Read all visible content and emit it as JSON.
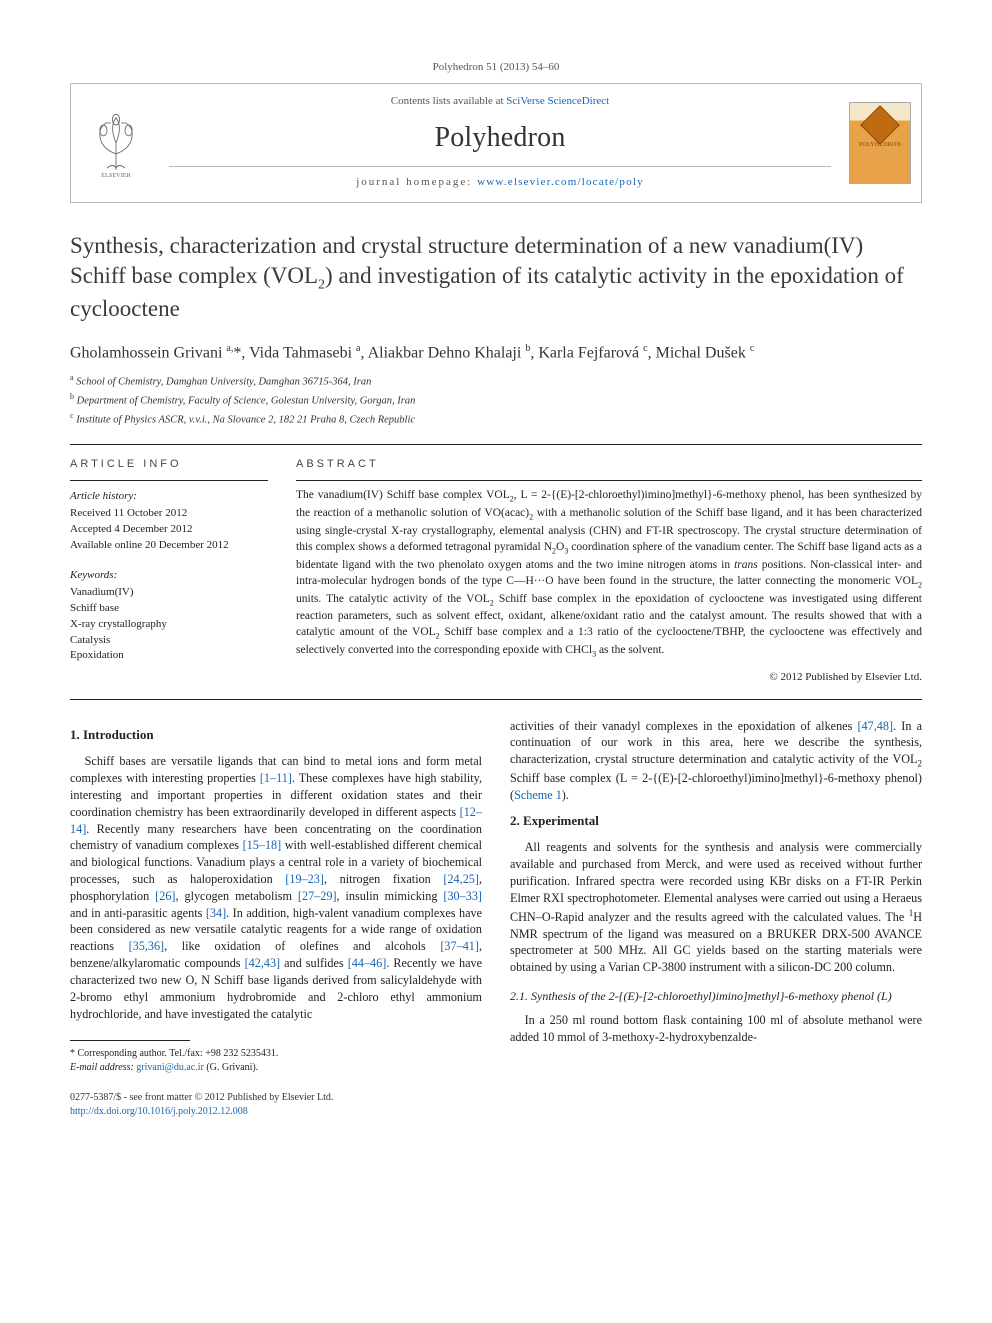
{
  "citation": "Polyhedron 51 (2013) 54–60",
  "header": {
    "contents_prefix": "Contents lists available at ",
    "contents_link": "SciVerse ScienceDirect",
    "journal": "Polyhedron",
    "homepage_label": "journal homepage: ",
    "homepage_url": "www.elsevier.com/locate/poly",
    "cover_label": "POLYHEDRON"
  },
  "title_html": "Synthesis, characterization and crystal structure determination of a new vanadium(IV) Schiff base complex (VOL<sub>2</sub>) and investigation of its catalytic activity in the epoxidation of cyclooctene",
  "authors_html": "Gholamhossein Grivani <sup>a,</sup><span class='corr'>*</span>, Vida Tahmasebi <sup>a</sup>, Aliakbar Dehno Khalaji <sup>b</sup>, Karla Fejfarová <sup>c</sup>, Michal Dušek <sup>c</sup>",
  "affiliations": {
    "a": "School of Chemistry, Damghan University, Damghan 36715-364, Iran",
    "b": "Department of Chemistry, Faculty of Science, Golestan University, Gorgan, Iran",
    "c": "Institute of Physics ASCR, v.v.i., Na Slovance 2, 182 21 Praha 8, Czech Republic"
  },
  "info": {
    "head": "ARTICLE INFO",
    "history_head": "Article history:",
    "received": "Received 11 October 2012",
    "accepted": "Accepted 4 December 2012",
    "online": "Available online 20 December 2012",
    "keywords_head": "Keywords:",
    "keywords": [
      "Vanadium(IV)",
      "Schiff base",
      "X-ray crystallography",
      "Catalysis",
      "Epoxidation"
    ]
  },
  "abstract": {
    "head": "ABSTRACT",
    "text_html": "The vanadium(IV) Schiff base complex VOL<sub>2</sub>, L = 2-{(E)-[2-chloroethyl)imino]methyl}-6-methoxy phenol, has been synthesized by the reaction of a methanolic solution of VO(acac)<sub>2</sub> with a methanolic solution of the Schiff base ligand, and it has been characterized using single-crystal X-ray crystallography, elemental analysis (CHN) and FT-IR spectroscopy. The crystal structure determination of this complex shows a deformed tetragonal pyramidal N<sub>2</sub>O<sub>3</sub> coordination sphere of the vanadium center. The Schiff base ligand acts as a bidentate ligand with the two phenolato oxygen atoms and the two imine nitrogen atoms in <i>trans</i> positions. Non-classical inter- and intra-molecular hydrogen bonds of the type C—H···O have been found in the structure, the latter connecting the monomeric VOL<sub>2</sub> units. The catalytic activity of the VOL<sub>2</sub> Schiff base complex in the epoxidation of cyclooctene was investigated using different reaction parameters, such as solvent effect, oxidant, alkene/oxidant ratio and the catalyst amount. The results showed that with a catalytic amount of the VOL<sub>2</sub> Schiff base complex and a 1:3 ratio of the cyclooctene/TBHP, the cyclooctene was effectively and selectively converted into the corresponding epoxide with CHCl<sub>3</sub> as the solvent.",
    "copyright": "© 2012 Published by Elsevier Ltd."
  },
  "sections": {
    "intro_head": "1. Introduction",
    "intro_p1_html": "Schiff bases are versatile ligands that can bind to metal ions and form metal complexes with interesting properties <a class='ref'>[1–11]</a>. These complexes have high stability, interesting and important properties in different oxidation states and their coordination chemistry has been extraordinarily developed in different aspects <a class='ref'>[12–14]</a>. Recently many researchers have been concentrating on the coordination chemistry of vanadium complexes <a class='ref'>[15–18]</a> with well-established different chemical and biological functions. Vanadium plays a central role in a variety of biochemical processes, such as haloperoxidation <a class='ref'>[19–23]</a>, nitrogen fixation <a class='ref'>[24,25]</a>, phosphorylation <a class='ref'>[26]</a>, glycogen metabolism <a class='ref'>[27–29]</a>, insulin mimicking <a class='ref'>[30–33]</a> and in anti-parasitic agents <a class='ref'>[34]</a>. In addition, high-valent vanadium complexes have been considered as new versatile catalytic reagents for a wide range of oxidation reactions <a class='ref'>[35,36]</a>, like oxidation of olefines and alcohols <a class='ref'>[37–41]</a>, benzene/alkylaromatic compounds <a class='ref'>[42,43]</a> and sulfides <a class='ref'>[44–46]</a>. Recently we have characterized two new O, N Schiff base ligands derived from salicylaldehyde with 2-bromo ethyl ammonium hydrobromide and 2-chloro ethyl ammonium hydrochloride, and have investigated the catalytic",
    "intro_p2_html": "activities of their vanadyl complexes in the epoxidation of alkenes <a class='ref'>[47,48]</a>. In a continuation of our work in this area, here we describe the synthesis, characterization, crystal structure determination and catalytic activity of the VOL<sub>2</sub> Schiff base complex (L = 2-{(E)-[2-chloroethyl)imino]methyl}-6-methoxy phenol) (<a class='ref'>Scheme 1</a>).",
    "exp_head": "2. Experimental",
    "exp_p1_html": "All reagents and solvents for the synthesis and analysis were commercially available and purchased from Merck, and were used as received without further purification. Infrared spectra were recorded using KBr disks on a FT-IR Perkin Elmer RXI spectrophotometer. Elemental analyses were carried out using a Heraeus CHN–O-Rapid analyzer and the results agreed with the calculated values. The <sup>1</sup>H NMR spectrum of the ligand was measured on a BRUKER DRX-500 AVANCE spectrometer at 500 MHz. All GC yields based on the starting materials were obtained by using a Varian CP-3800 instrument with a silicon-DC 200 column.",
    "synth_head": "2.1. Synthesis of the 2-{(E)-[2-chloroethyl)imino]methyl}-6-methoxy phenol (L)",
    "synth_p1_html": "In a 250 ml round bottom flask containing 100 ml of absolute methanol were added 10 mmol of 3-methoxy-2-hydroxybenzalde-"
  },
  "footnote": {
    "corr_label": "* Corresponding author. Tel./fax: +98 232 5235431.",
    "email_label": "E-mail address:",
    "email": "grivani@du.ac.ir",
    "email_name": "(G. Grivani)."
  },
  "bottom": {
    "issn": "0277-5387/$ - see front matter © 2012 Published by Elsevier Ltd.",
    "doi": "http://dx.doi.org/10.1016/j.poly.2012.12.008"
  },
  "colors": {
    "link": "#1864b2",
    "text": "#222222",
    "border": "#b8b8b8",
    "rule": "#222222"
  }
}
